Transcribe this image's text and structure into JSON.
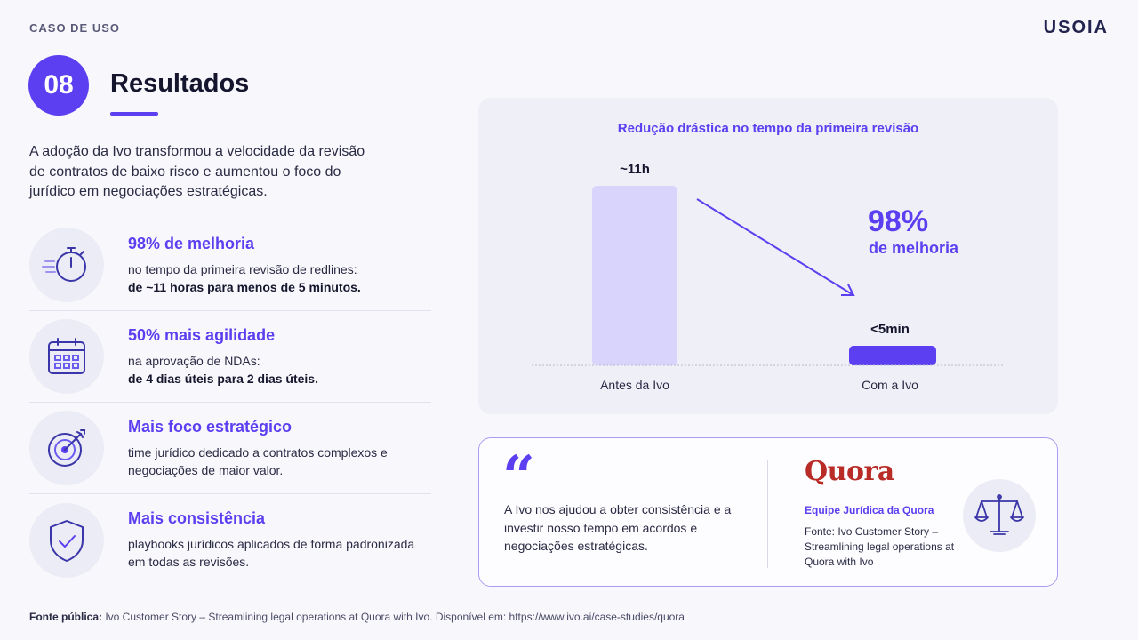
{
  "header": {
    "eyebrow": "CASO DE USO",
    "brand": "USOIA",
    "section_number": "08",
    "title": "Resultados"
  },
  "intro": "A adoção da Ivo transformou a velocidade da revisão de contratos de baixo risco e aumentou o foco do jurídico em negociações estratégicas.",
  "metrics": [
    {
      "icon": "stopwatch-icon",
      "title": "98% de melhoria",
      "desc": "no tempo da primeira revisão de redlines:",
      "bold": "de ~11 horas para menos de 5 minutos."
    },
    {
      "icon": "calendar-icon",
      "title": "50% mais agilidade",
      "desc": "na aprovação de NDAs:",
      "bold": "de 4 dias úteis para 2 dias úteis."
    },
    {
      "icon": "target-icon",
      "title": "Mais foco estratégico",
      "desc": "time jurídico dedicado a contratos complexos e negociações de maior valor.",
      "bold": ""
    },
    {
      "icon": "shield-check-icon",
      "title": "Mais consistência",
      "desc": "playbooks jurídicos aplicados de forma padronizada em todas as revisões.",
      "bold": ""
    }
  ],
  "chart_data": {
    "type": "bar",
    "title": "Redução drástica no tempo da primeira revisão",
    "categories": [
      "Antes da Ivo",
      "Com a Ivo"
    ],
    "values": [
      660,
      5
    ],
    "value_labels": [
      "~11h",
      "<5min"
    ],
    "unit": "minutes",
    "colors": [
      "#d9d4fb",
      "#5b3ff0"
    ],
    "callout_value": "98%",
    "callout_label": "de melhoria"
  },
  "quote": {
    "mark": "“",
    "text": "A Ivo nos ajudou a obter consistência e a investir nosso tempo em acordos e negociações estratégicas.",
    "logo": "Quora",
    "team": "Equipe Jurídica da Quora",
    "source": "Fonte: Ivo Customer Story – Streamlining legal operations at Quora with Ivo",
    "icon": "scale-icon"
  },
  "footer": {
    "label": "Fonte pública:",
    "text": "Ivo Customer Story – Streamlining legal operations at Quora with Ivo. Disponível em: https://www.ivo.ai/case-studies/quora"
  },
  "colors": {
    "accent": "#5b3ff0",
    "accent_light": "#d9d4fb",
    "quora": "#b92b27"
  }
}
